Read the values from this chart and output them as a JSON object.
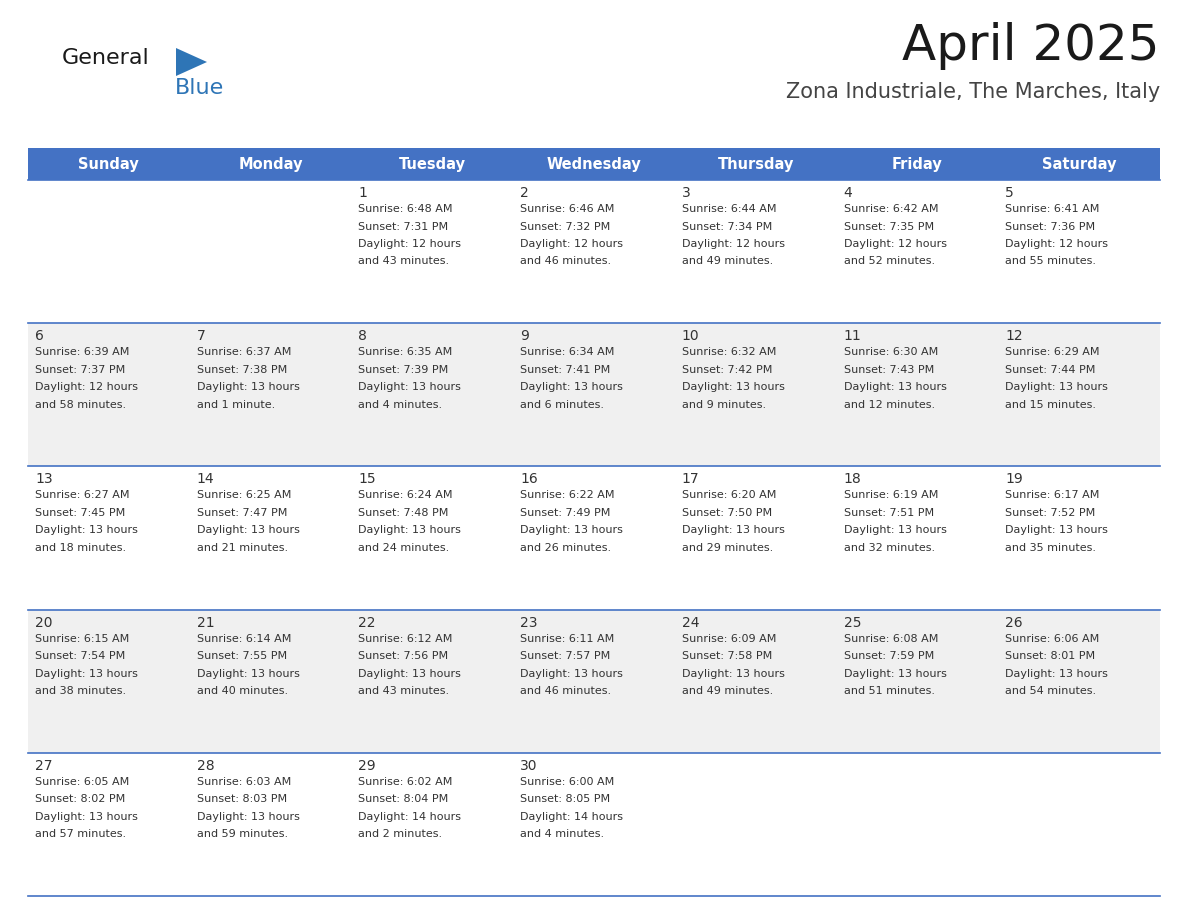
{
  "title": "April 2025",
  "subtitle": "Zona Industriale, The Marches, Italy",
  "header_bg": "#4472C4",
  "header_text": "#FFFFFF",
  "days_of_week": [
    "Sunday",
    "Monday",
    "Tuesday",
    "Wednesday",
    "Thursday",
    "Friday",
    "Saturday"
  ],
  "row_bg_even": "#FFFFFF",
  "row_bg_odd": "#F0F0F0",
  "cell_border": "#4472C4",
  "logo_general_color": "#1a1a1a",
  "logo_blue_color": "#2E75B6",
  "title_color": "#1a1a1a",
  "subtitle_color": "#444444",
  "text_color": "#333333",
  "calendar": [
    [
      {
        "day": "",
        "info": ""
      },
      {
        "day": "",
        "info": ""
      },
      {
        "day": "1",
        "info": "Sunrise: 6:48 AM\nSunset: 7:31 PM\nDaylight: 12 hours\nand 43 minutes."
      },
      {
        "day": "2",
        "info": "Sunrise: 6:46 AM\nSunset: 7:32 PM\nDaylight: 12 hours\nand 46 minutes."
      },
      {
        "day": "3",
        "info": "Sunrise: 6:44 AM\nSunset: 7:34 PM\nDaylight: 12 hours\nand 49 minutes."
      },
      {
        "day": "4",
        "info": "Sunrise: 6:42 AM\nSunset: 7:35 PM\nDaylight: 12 hours\nand 52 minutes."
      },
      {
        "day": "5",
        "info": "Sunrise: 6:41 AM\nSunset: 7:36 PM\nDaylight: 12 hours\nand 55 minutes."
      }
    ],
    [
      {
        "day": "6",
        "info": "Sunrise: 6:39 AM\nSunset: 7:37 PM\nDaylight: 12 hours\nand 58 minutes."
      },
      {
        "day": "7",
        "info": "Sunrise: 6:37 AM\nSunset: 7:38 PM\nDaylight: 13 hours\nand 1 minute."
      },
      {
        "day": "8",
        "info": "Sunrise: 6:35 AM\nSunset: 7:39 PM\nDaylight: 13 hours\nand 4 minutes."
      },
      {
        "day": "9",
        "info": "Sunrise: 6:34 AM\nSunset: 7:41 PM\nDaylight: 13 hours\nand 6 minutes."
      },
      {
        "day": "10",
        "info": "Sunrise: 6:32 AM\nSunset: 7:42 PM\nDaylight: 13 hours\nand 9 minutes."
      },
      {
        "day": "11",
        "info": "Sunrise: 6:30 AM\nSunset: 7:43 PM\nDaylight: 13 hours\nand 12 minutes."
      },
      {
        "day": "12",
        "info": "Sunrise: 6:29 AM\nSunset: 7:44 PM\nDaylight: 13 hours\nand 15 minutes."
      }
    ],
    [
      {
        "day": "13",
        "info": "Sunrise: 6:27 AM\nSunset: 7:45 PM\nDaylight: 13 hours\nand 18 minutes."
      },
      {
        "day": "14",
        "info": "Sunrise: 6:25 AM\nSunset: 7:47 PM\nDaylight: 13 hours\nand 21 minutes."
      },
      {
        "day": "15",
        "info": "Sunrise: 6:24 AM\nSunset: 7:48 PM\nDaylight: 13 hours\nand 24 minutes."
      },
      {
        "day": "16",
        "info": "Sunrise: 6:22 AM\nSunset: 7:49 PM\nDaylight: 13 hours\nand 26 minutes."
      },
      {
        "day": "17",
        "info": "Sunrise: 6:20 AM\nSunset: 7:50 PM\nDaylight: 13 hours\nand 29 minutes."
      },
      {
        "day": "18",
        "info": "Sunrise: 6:19 AM\nSunset: 7:51 PM\nDaylight: 13 hours\nand 32 minutes."
      },
      {
        "day": "19",
        "info": "Sunrise: 6:17 AM\nSunset: 7:52 PM\nDaylight: 13 hours\nand 35 minutes."
      }
    ],
    [
      {
        "day": "20",
        "info": "Sunrise: 6:15 AM\nSunset: 7:54 PM\nDaylight: 13 hours\nand 38 minutes."
      },
      {
        "day": "21",
        "info": "Sunrise: 6:14 AM\nSunset: 7:55 PM\nDaylight: 13 hours\nand 40 minutes."
      },
      {
        "day": "22",
        "info": "Sunrise: 6:12 AM\nSunset: 7:56 PM\nDaylight: 13 hours\nand 43 minutes."
      },
      {
        "day": "23",
        "info": "Sunrise: 6:11 AM\nSunset: 7:57 PM\nDaylight: 13 hours\nand 46 minutes."
      },
      {
        "day": "24",
        "info": "Sunrise: 6:09 AM\nSunset: 7:58 PM\nDaylight: 13 hours\nand 49 minutes."
      },
      {
        "day": "25",
        "info": "Sunrise: 6:08 AM\nSunset: 7:59 PM\nDaylight: 13 hours\nand 51 minutes."
      },
      {
        "day": "26",
        "info": "Sunrise: 6:06 AM\nSunset: 8:01 PM\nDaylight: 13 hours\nand 54 minutes."
      }
    ],
    [
      {
        "day": "27",
        "info": "Sunrise: 6:05 AM\nSunset: 8:02 PM\nDaylight: 13 hours\nand 57 minutes."
      },
      {
        "day": "28",
        "info": "Sunrise: 6:03 AM\nSunset: 8:03 PM\nDaylight: 13 hours\nand 59 minutes."
      },
      {
        "day": "29",
        "info": "Sunrise: 6:02 AM\nSunset: 8:04 PM\nDaylight: 14 hours\nand 2 minutes."
      },
      {
        "day": "30",
        "info": "Sunrise: 6:00 AM\nSunset: 8:05 PM\nDaylight: 14 hours\nand 4 minutes."
      },
      {
        "day": "",
        "info": ""
      },
      {
        "day": "",
        "info": ""
      },
      {
        "day": "",
        "info": ""
      }
    ]
  ]
}
